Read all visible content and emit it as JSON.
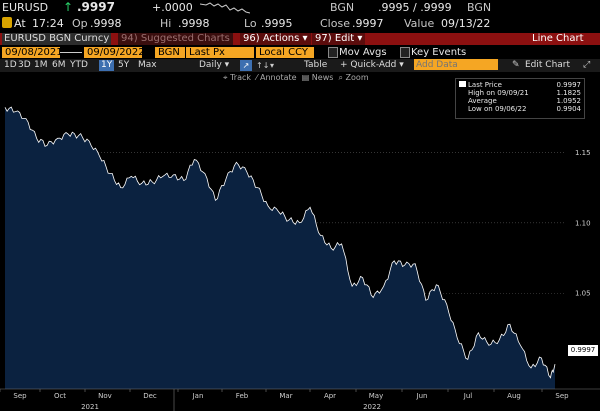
{
  "quote1": {
    "ticker": "EURUSD",
    "arrow": "↑",
    "last": ".9997",
    "change": "+.0000",
    "source": "BGN",
    "bid_ask": ".9995 / .9999",
    "source2": "BGN"
  },
  "quote2": {
    "badge": "At",
    "time": "17:24",
    "op_label": "Op",
    "op": ".9998",
    "hi_label": "Hi",
    "hi": ".9998",
    "lo_label": "Lo",
    "lo": ".9995",
    "close_label": "Close",
    "close": ".9997",
    "value_label": "Value",
    "value_date": "09/13/22"
  },
  "tabsbar": {
    "security": "EURUSD BGN Curncy",
    "suggested_num": "94)",
    "suggested": "Suggested Charts",
    "actions_num": "96)",
    "actions": "Actions",
    "edit_num": "97)",
    "edit": "Edit",
    "title": "Line Chart"
  },
  "fields": {
    "start_date": "09/08/2021",
    "end_date": "09/09/2022",
    "source": "BGN",
    "price": "Last Px",
    "currency": "Local CCY",
    "mov_avgs": "Mov Avgs",
    "key_events": "Key Events"
  },
  "toolbar": {
    "ranges": [
      "1D",
      "3D",
      "1M",
      "6M",
      "YTD",
      "1Y",
      "5Y",
      "Max"
    ],
    "active_range": "1Y",
    "frequency": "Daily",
    "table": "Table",
    "quick_add": "+ Quick-Add",
    "add_data_placeholder": "Add Data",
    "edit_chart": "Edit Chart"
  },
  "tools": {
    "track": "Track",
    "annotate": "Annotate",
    "news": "News",
    "zoom": "Zoom"
  },
  "legend": {
    "last_label": "Last Price",
    "last_value": "0.9997",
    "high_label": "High on 09/09/21",
    "high_value": "1.1825",
    "avg_label": "Average",
    "avg_value": "1.0952",
    "low_label": "Low on 09/06/22",
    "low_value": "0.9904"
  },
  "colors": {
    "bg": "#000000",
    "area_fill": "#0b2240",
    "line": "#ffffff",
    "orange": "#f5a623",
    "red_tab": "#8c1010",
    "up_green": "#29d36a"
  },
  "chart_data": {
    "type": "area",
    "series": [
      {
        "name": "Last Price",
        "x": [
          "2021-09-08",
          "2021-09-15",
          "2021-09-22",
          "2021-09-29",
          "2021-10-06",
          "2021-10-13",
          "2021-10-20",
          "2021-10-27",
          "2021-11-03",
          "2021-11-10",
          "2021-11-17",
          "2021-11-24",
          "2021-12-01",
          "2021-12-08",
          "2021-12-15",
          "2021-12-22",
          "2021-12-29",
          "2022-01-05",
          "2022-01-12",
          "2022-01-19",
          "2022-01-26",
          "2022-02-02",
          "2022-02-09",
          "2022-02-16",
          "2022-02-23",
          "2022-03-02",
          "2022-03-09",
          "2022-03-16",
          "2022-03-23",
          "2022-03-30",
          "2022-04-06",
          "2022-04-13",
          "2022-04-20",
          "2022-04-27",
          "2022-05-04",
          "2022-05-11",
          "2022-05-18",
          "2022-05-25",
          "2022-06-01",
          "2022-06-08",
          "2022-06-15",
          "2022-06-22",
          "2022-06-29",
          "2022-07-06",
          "2022-07-13",
          "2022-07-20",
          "2022-07-27",
          "2022-08-03",
          "2022-08-10",
          "2022-08-17",
          "2022-08-24",
          "2022-08-31",
          "2022-09-06",
          "2022-09-09"
        ],
        "values": [
          1.182,
          1.179,
          1.174,
          1.16,
          1.155,
          1.16,
          1.163,
          1.162,
          1.158,
          1.147,
          1.135,
          1.125,
          1.133,
          1.128,
          1.129,
          1.133,
          1.134,
          1.13,
          1.145,
          1.135,
          1.116,
          1.131,
          1.143,
          1.136,
          1.125,
          1.112,
          1.108,
          1.102,
          1.1,
          1.111,
          1.091,
          1.082,
          1.085,
          1.055,
          1.061,
          1.047,
          1.055,
          1.073,
          1.07,
          1.071,
          1.045,
          1.056,
          1.042,
          1.018,
          1.003,
          1.022,
          1.013,
          1.017,
          1.028,
          1.013,
          0.997,
          1.004,
          0.99,
          0.9997
        ]
      }
    ],
    "x_ticks": [
      "Sep",
      "Oct",
      "Nov",
      "Dec",
      "Jan",
      "Feb",
      "Mar",
      "Apr",
      "May",
      "Jun",
      "Jul",
      "Aug",
      "Sep"
    ],
    "years": [
      "2021",
      "2022"
    ],
    "y_ticks": [
      "1.15",
      "1.10",
      "1.05"
    ],
    "ylim": [
      0.982,
      1.2
    ]
  }
}
